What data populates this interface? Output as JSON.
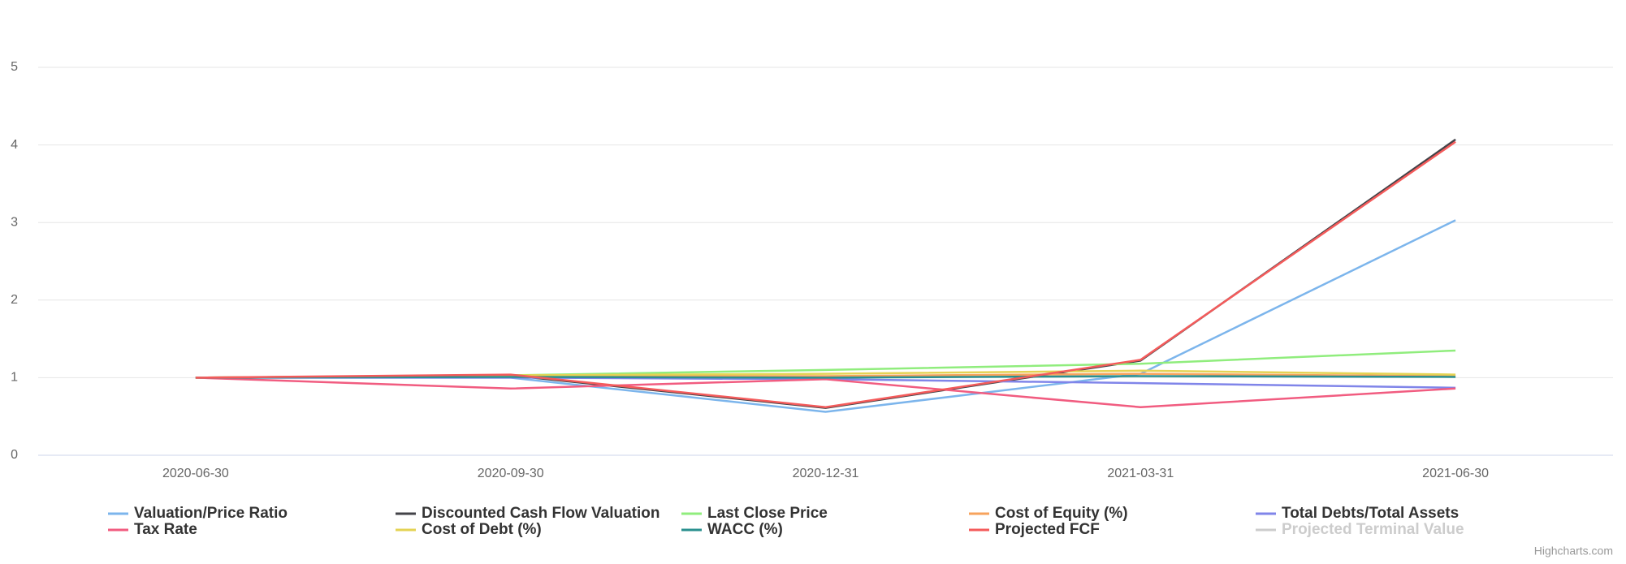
{
  "chart_data": {
    "type": "line",
    "categories": [
      "2020-06-30",
      "2020-09-30",
      "2020-12-31",
      "2021-03-31",
      "2021-06-30"
    ],
    "ylim": [
      0,
      5
    ],
    "yticks": [
      0,
      1,
      2,
      3,
      4,
      5
    ],
    "grid": true,
    "legend": "bottom",
    "credits": "Highcharts.com",
    "series": [
      {
        "name": "Valuation/Price Ratio",
        "color": "#7cb5ec",
        "values": [
          1.0,
          1.0,
          0.56,
          1.05,
          3.03
        ]
      },
      {
        "name": "Discounted Cash Flow Valuation",
        "color": "#434348",
        "values": [
          1.0,
          1.03,
          0.61,
          1.22,
          4.07
        ]
      },
      {
        "name": "Last Close Price",
        "color": "#90ed7d",
        "values": [
          1.0,
          1.03,
          1.1,
          1.18,
          1.35
        ]
      },
      {
        "name": "Cost of Equity (%)",
        "color": "#f7a35c",
        "values": [
          1.0,
          1.02,
          1.02,
          1.05,
          1.02
        ]
      },
      {
        "name": "Total Debts/Total Assets",
        "color": "#8085e9",
        "values": [
          1.0,
          1.0,
          0.98,
          0.93,
          0.87
        ]
      },
      {
        "name": "Tax Rate",
        "color": "#f15c80",
        "values": [
          1.0,
          0.86,
          0.98,
          0.62,
          0.86
        ]
      },
      {
        "name": "Cost of Debt (%)",
        "color": "#e4d354",
        "values": [
          1.0,
          1.03,
          1.05,
          1.09,
          1.04
        ]
      },
      {
        "name": "WACC (%)",
        "color": "#2b908f",
        "values": [
          1.0,
          1.01,
          1.0,
          1.02,
          1.01
        ]
      },
      {
        "name": "Projected FCF",
        "color": "#f45b5b",
        "values": [
          1.0,
          1.04,
          0.62,
          1.23,
          4.04
        ]
      },
      {
        "name": "Projected Terminal Value",
        "color": "#91e8e1",
        "visible": false,
        "values": [
          null,
          null,
          null,
          null,
          null
        ]
      }
    ]
  }
}
